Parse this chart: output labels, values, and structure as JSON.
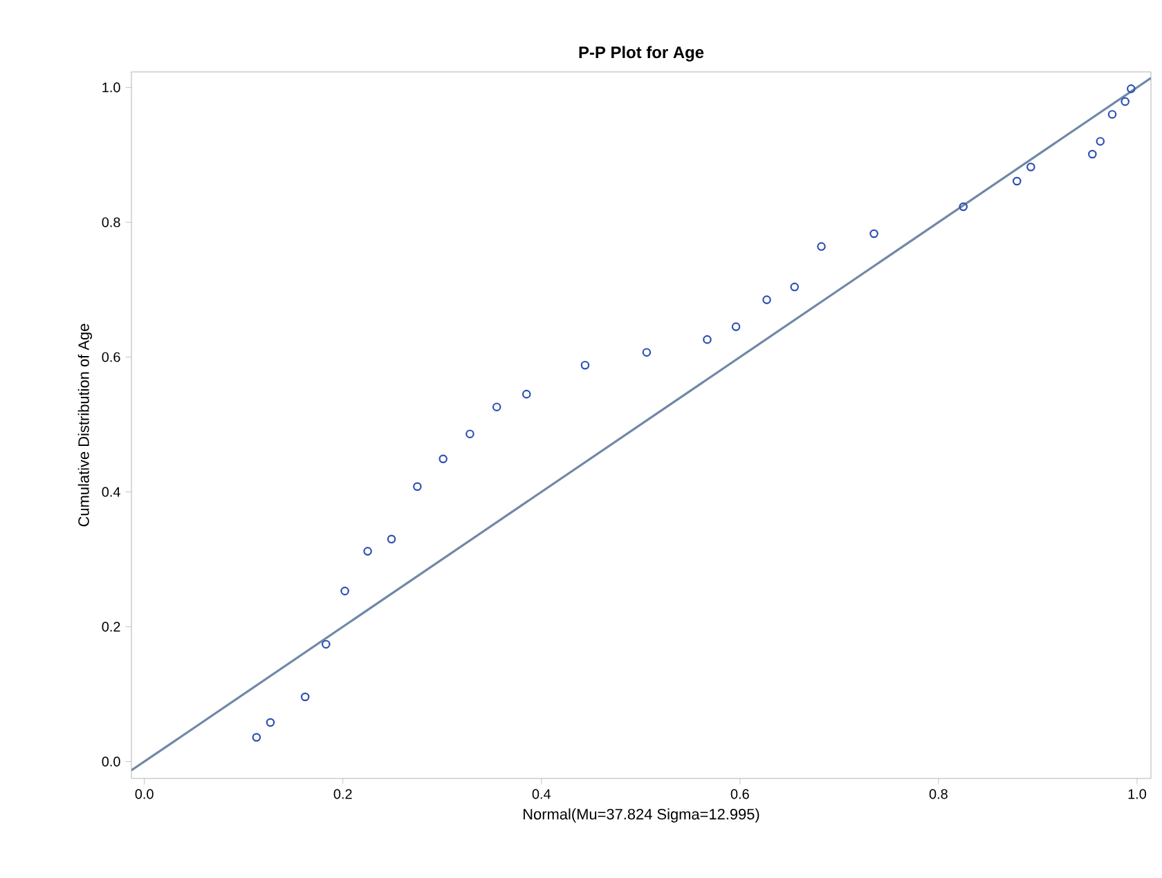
{
  "chart_data": {
    "type": "scatter",
    "title": "P-P Plot for Age",
    "xlabel": "Normal(Mu=37.824 Sigma=12.995)",
    "ylabel": "Cumulative Distribution of Age",
    "xlim": [
      -0.013,
      1.014
    ],
    "ylim": [
      -0.025,
      1.023
    ],
    "xticks": [
      {
        "value": 0,
        "label": "0.0"
      },
      0.2,
      0.4,
      0.6,
      0.8,
      {
        "value": 1,
        "label": "1.0"
      }
    ],
    "yticks": [
      {
        "value": 0,
        "label": "0.0"
      },
      0.2,
      0.4,
      0.6,
      0.8,
      {
        "value": 1,
        "label": "1.0"
      }
    ],
    "marker": "circle",
    "series": [
      {
        "color": "#2d4fb0",
        "x": [
          0.113,
          0.127,
          0.162,
          0.183,
          0.202,
          0.225,
          0.249,
          0.275,
          0.301,
          0.328,
          0.355,
          0.385,
          0.444,
          0.506,
          0.567,
          0.596,
          0.627,
          0.655,
          0.682,
          0.735,
          0.825,
          0.879,
          0.893,
          0.955,
          0.963,
          0.975,
          0.988,
          0.994
        ],
        "values": [
          0.036,
          0.058,
          0.096,
          0.174,
          0.253,
          0.312,
          0.33,
          0.408,
          0.449,
          0.486,
          0.526,
          0.545,
          0.588,
          0.607,
          0.626,
          0.645,
          0.685,
          0.704,
          0.764,
          0.783,
          0.823,
          0.861,
          0.882,
          0.901,
          0.92,
          0.96,
          0.979,
          0.998
        ]
      },
      {
        "type": "line",
        "color": "#7088a8",
        "marker": "none",
        "x": [
          -0.013,
          1.014
        ],
        "values": [
          -0.013,
          1.014
        ]
      }
    ]
  }
}
